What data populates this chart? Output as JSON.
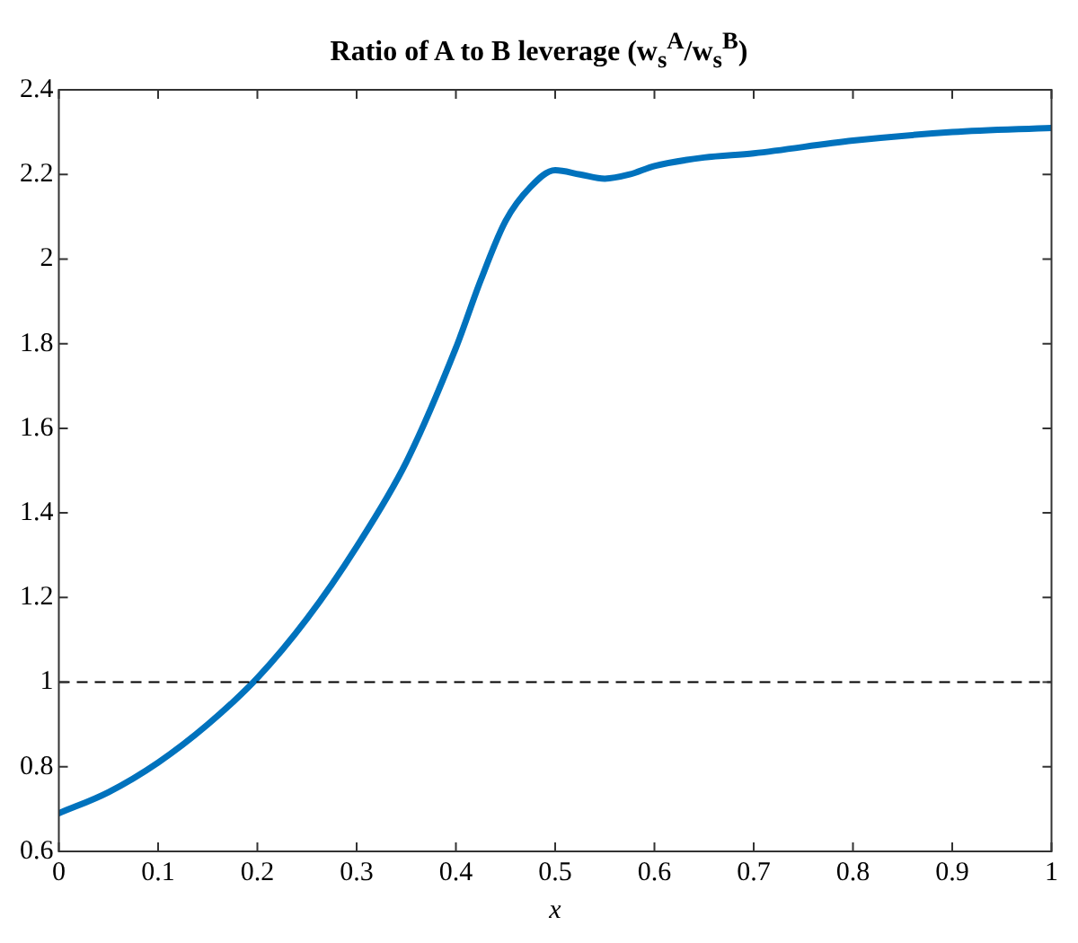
{
  "chart_data": {
    "type": "line",
    "title": "Ratio of A to B leverage (w$_{s}$$^{A}$/w$_{s}$$^{B}$)",
    "xlabel": "x",
    "x": [
      0,
      0.05,
      0.1,
      0.15,
      0.2,
      0.25,
      0.3,
      0.35,
      0.4,
      0.425,
      0.45,
      0.475,
      0.5,
      0.525,
      0.55,
      0.575,
      0.6,
      0.65,
      0.7,
      0.8,
      0.9,
      1
    ],
    "series": [
      {
        "color": "#0072bd",
        "values": [
          0.69,
          0.74,
          0.81,
          0.9,
          1.01,
          1.15,
          1.32,
          1.52,
          1.79,
          1.95,
          2.09,
          2.17,
          2.21,
          2.2,
          2.19,
          2.2,
          2.22,
          2.24,
          2.25,
          2.28,
          2.3,
          2.31
        ]
      }
    ],
    "xlim": [
      0,
      1
    ],
    "xticks": [
      0,
      0.1,
      0.2,
      0.3,
      0.4,
      0.5,
      0.6,
      0.7,
      0.8,
      0.9,
      1
    ],
    "ylim": [
      0.6,
      2.4
    ],
    "yticks": [
      0.6,
      0.8,
      1,
      1.2,
      1.4,
      1.6,
      1.8,
      2,
      2.2,
      2.4
    ],
    "ref_lines": [
      {
        "axis": "y",
        "value": 1,
        "color": "#000000",
        "line_style": "dashed"
      }
    ],
    "grid": false,
    "legend": false,
    "marker": "none",
    "line_style": "solid"
  }
}
